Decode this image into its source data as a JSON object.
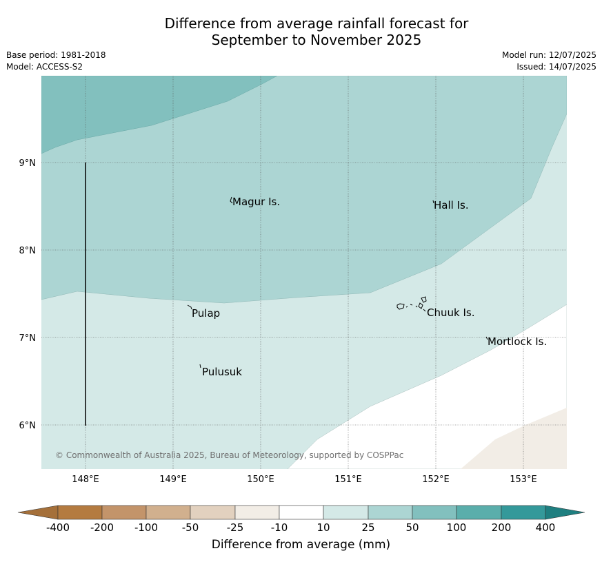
{
  "title": {
    "line1": "Difference from average rainfall forecast for",
    "line2": "September to November 2025"
  },
  "meta": {
    "base_period": "Base period: 1981-2018",
    "model": "Model: ACCESS-S2",
    "model_run": "Model run: 12/07/2025",
    "issued": "Issued: 14/07/2025"
  },
  "map": {
    "lon_ticks": [
      "148°E",
      "149°E",
      "150°E",
      "151°E",
      "152°E",
      "153°E"
    ],
    "lat_ticks": [
      "9°N",
      "8°N",
      "7°N",
      "6°N"
    ],
    "places": [
      {
        "name": "Magur Is."
      },
      {
        "name": "Hall Is."
      },
      {
        "name": "Pulap"
      },
      {
        "name": "Chuuk Is."
      },
      {
        "name": "Mortlock Is."
      },
      {
        "name": "Pulusuk"
      }
    ],
    "copyright": "© Commonwealth of Australia 2025, Bureau of Meteorology, supported by COSPPac",
    "category_colors": {
      "10_to_25": "#d4e9e7",
      "25_to_50": "#acd5d3",
      "50_to_100": "#82c0be",
      "neutral": "#ffffff",
      "minus25_to_minus10": "#f2ede6"
    }
  },
  "legend": {
    "ticks": [
      "-400",
      "-200",
      "-100",
      "-50",
      "-25",
      "-10",
      "10",
      "25",
      "50",
      "100",
      "200",
      "400"
    ],
    "colors": [
      "#a5703a",
      "#b47b40",
      "#c3946a",
      "#d1b08e",
      "#e2d1bf",
      "#f2ede6",
      "#ffffff",
      "#d4e9e7",
      "#acd5d3",
      "#82c0be",
      "#5aaeab",
      "#34999a",
      "#1f7f80"
    ],
    "label": "Difference from average (mm)"
  }
}
